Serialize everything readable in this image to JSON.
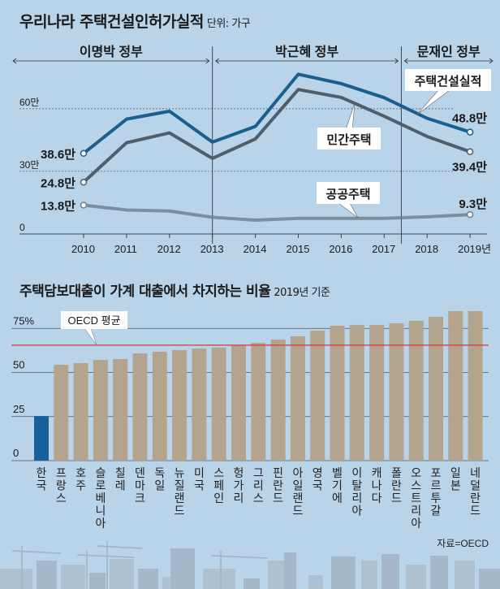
{
  "chart_data": [
    {
      "type": "line",
      "title": "우리나라 주택건설인허가실적",
      "unit_label": "단위: 가구",
      "x": [
        "2010",
        "2011",
        "2012",
        "2013",
        "2014",
        "2015",
        "2016",
        "2017",
        "2018",
        "2019"
      ],
      "x_last_suffix": "년",
      "yticks": [
        {
          "v": 0,
          "label": "0"
        },
        {
          "v": 30,
          "label": "30만"
        },
        {
          "v": 60,
          "label": "60만"
        }
      ],
      "ylim": [
        0,
        80
      ],
      "unit": "만 가구",
      "periods": [
        {
          "label": "이명박 정부",
          "from": 2010,
          "to": 2013
        },
        {
          "label": "박근혜 정부",
          "from": 2013,
          "to": 2017.4
        },
        {
          "label": "문재인 정부",
          "from": 2017.4,
          "to": 2019.5
        }
      ],
      "series": [
        {
          "name": "주택건설실적",
          "color": "#1b5f8f",
          "values": [
            38.6,
            55.0,
            58.8,
            44.0,
            51.5,
            76.5,
            72.0,
            65.3,
            55.4,
            48.8
          ],
          "start_label": "38.6만",
          "end_label": "48.8만"
        },
        {
          "name": "민간주택",
          "color": "#4f5e6b",
          "values": [
            24.8,
            43.7,
            48.4,
            36.2,
            45.5,
            69.2,
            65.4,
            56.4,
            46.7,
            39.4
          ],
          "start_label": "24.8만",
          "end_label": "39.4만"
        },
        {
          "name": "공공주택",
          "color": "#6d8193",
          "values": [
            13.8,
            11.5,
            11.0,
            8.0,
            6.6,
            7.5,
            7.5,
            7.5,
            8.2,
            9.3
          ],
          "start_label": "13.8만",
          "end_label": "9.3만"
        }
      ]
    },
    {
      "type": "bar",
      "title": "주택담보대출이 가계 대출에서 차지하는 비율",
      "subtitle": "2019년 기준",
      "categories": [
        "한국",
        "프랑스",
        "호주",
        "슬로베니아",
        "칠레",
        "덴마크",
        "독일",
        "뉴질랜드",
        "미국",
        "스페인",
        "헝가리",
        "그리스",
        "핀란드",
        "아일랜드",
        "영국",
        "벨기에",
        "이탈리아",
        "캐나다",
        "폴란드",
        "오스트리아",
        "포르투갈",
        "일본",
        "네덜란드"
      ],
      "values": [
        25.3,
        54.4,
        55.3,
        57.1,
        57.6,
        60.8,
        61.8,
        62.7,
        63.6,
        64.1,
        65.4,
        66.8,
        68.7,
        70.5,
        73.7,
        76.5,
        77.0,
        77.0,
        77.9,
        79.3,
        81.6,
        84.8,
        84.8
      ],
      "highlight_index": 0,
      "highlight_color": "#17609a",
      "bar_color": "#b5a48d",
      "yticks": [
        {
          "v": 0,
          "label": "0"
        },
        {
          "v": 25,
          "label": "25"
        },
        {
          "v": 50,
          "label": "50"
        },
        {
          "v": 75,
          "label": "75%"
        }
      ],
      "ylim": [
        0,
        90
      ],
      "reference_line": {
        "label": "OECD 평균",
        "value": 65.5,
        "color": "#d0383e"
      }
    }
  ],
  "source": "자료=OECD"
}
